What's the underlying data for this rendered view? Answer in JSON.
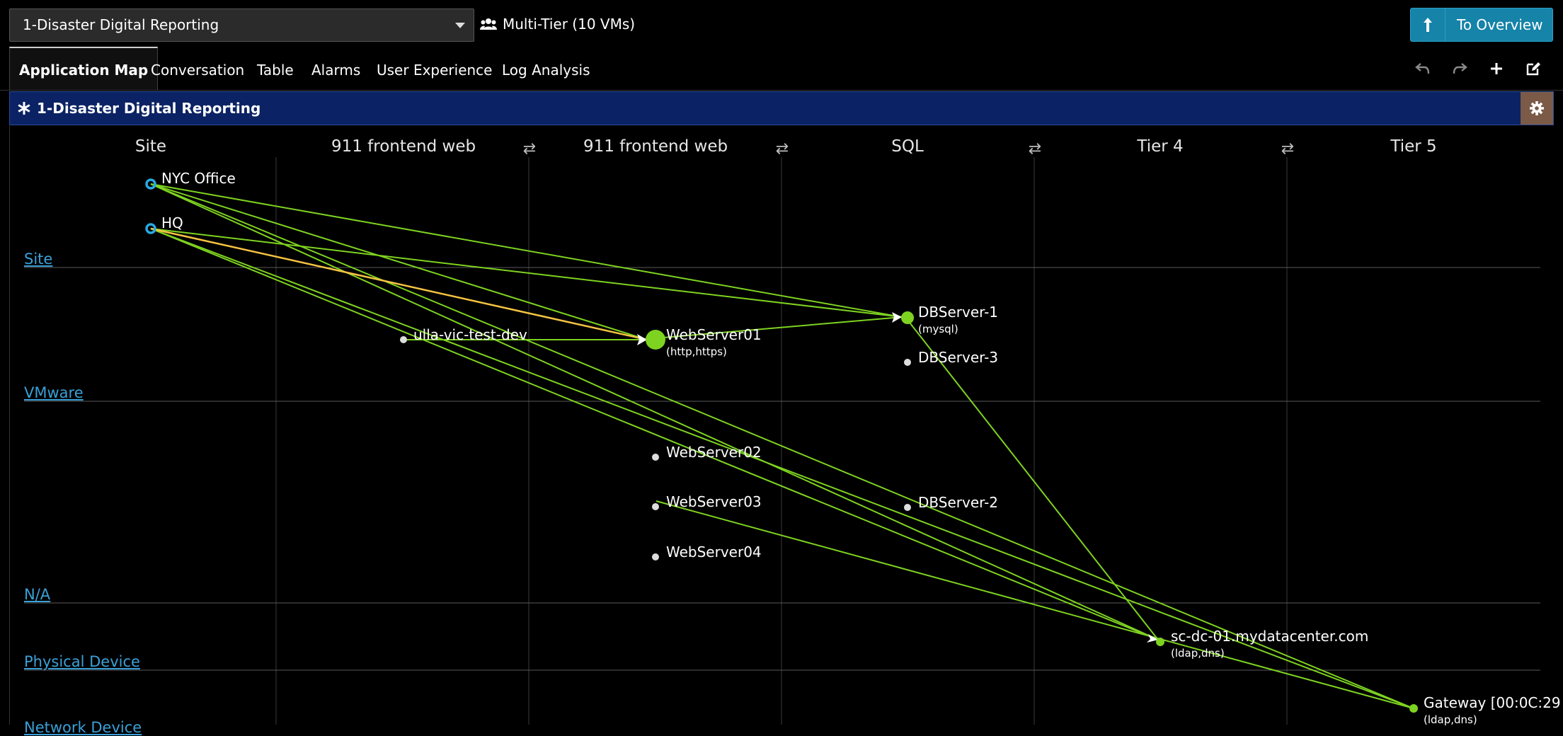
{
  "topbar": {
    "app_selector": "1-Disaster Digital Reporting",
    "tier_info": "Multi-Tier (10 VMs)",
    "overview_button": "To Overview"
  },
  "tabs": [
    {
      "label": "Application Map",
      "active": true
    },
    {
      "label": "Conversation"
    },
    {
      "label": "Table"
    },
    {
      "label": "Alarms"
    },
    {
      "label": "User Experience"
    },
    {
      "label": "Log Analysis"
    }
  ],
  "header": {
    "title": "1-Disaster Digital Reporting"
  },
  "map": {
    "columns": [
      "Site",
      "911 frontend web",
      "911 frontend web",
      "SQL",
      "Tier 4",
      "Tier 5"
    ],
    "rows": [
      "Site",
      "VMware",
      "N/A",
      "Physical Device",
      "Network Device"
    ],
    "nodes": [
      {
        "name": "NYC Office",
        "sub": ""
      },
      {
        "name": "HQ",
        "sub": ""
      },
      {
        "name": "ulla-vic-test-dev",
        "sub": ""
      },
      {
        "name": "WebServer01",
        "sub": "(http,https)"
      },
      {
        "name": "WebServer02",
        "sub": ""
      },
      {
        "name": "WebServer03",
        "sub": ""
      },
      {
        "name": "WebServer04",
        "sub": ""
      },
      {
        "name": "DBServer-1",
        "sub": "(mysql)"
      },
      {
        "name": "DBServer-3",
        "sub": ""
      },
      {
        "name": "DBServer-2",
        "sub": ""
      },
      {
        "name": "sc-dc-01.mydatacenter.com",
        "sub": "(ldap,dns)"
      },
      {
        "name": "Gateway [00:0C:29",
        "sub": "(ldap,dns)"
      }
    ],
    "colors": {
      "link": "#7ed321",
      "link_warning": "#f5c342",
      "site_node": "#29a8e0",
      "node_active": "#7ed321",
      "node_idle": "#dddddd"
    }
  }
}
